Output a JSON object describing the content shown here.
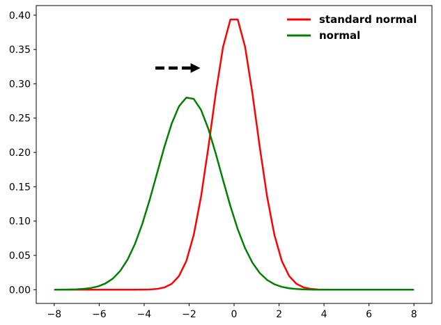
{
  "chart_data": {
    "type": "line",
    "title": "",
    "xlabel": "",
    "ylabel": "",
    "xlim": [
      -8.8,
      8.8
    ],
    "ylim": [
      -0.02,
      0.414
    ],
    "xticks": [
      -8,
      -6,
      -4,
      -2,
      0,
      2,
      4,
      6,
      8
    ],
    "xtick_labels": [
      "−8",
      "−6",
      "−4",
      "−2",
      "0",
      "2",
      "4",
      "6",
      "8"
    ],
    "yticks": [
      0.0,
      0.05,
      0.1,
      0.15,
      0.2,
      0.25,
      0.3,
      0.35,
      0.4
    ],
    "ytick_labels": [
      "0.00",
      "0.05",
      "0.10",
      "0.15",
      "0.20",
      "0.25",
      "0.30",
      "0.35",
      "0.40"
    ],
    "grid": false,
    "legend": "top-right",
    "series": [
      {
        "name": "standard normal",
        "color": "#ff0000",
        "mean": 0,
        "sd": 1,
        "x_range": [
          -8,
          8
        ],
        "n_points": 50
      },
      {
        "name": "normal",
        "color": "#008000",
        "mean": -2,
        "sd": 1.42,
        "x_range": [
          -8,
          8
        ],
        "n_points": 50
      }
    ],
    "annotations": [
      {
        "type": "dashed-arrow",
        "from": [
          -3.5,
          0.323
        ],
        "to": [
          -1.5,
          0.323
        ],
        "color": "#000000"
      }
    ]
  }
}
